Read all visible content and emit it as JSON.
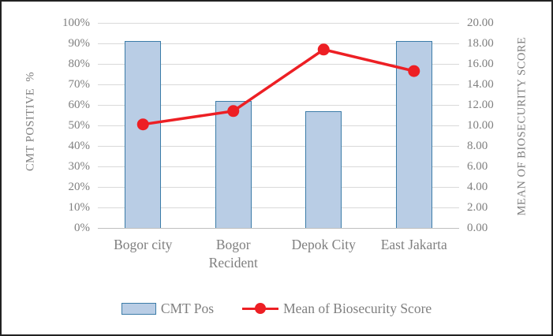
{
  "chart_data": {
    "type": "combo",
    "title": "",
    "categories": [
      "Bogor city",
      "Bogor Recident",
      "Depok City",
      "East Jakarta"
    ],
    "series": [
      {
        "name": "CMT Pos",
        "type": "bar",
        "axis": "left",
        "unit": "%",
        "values": [
          91,
          62,
          57,
          91
        ]
      },
      {
        "name": "Mean of Biosecurity Score",
        "type": "line",
        "axis": "right",
        "values": [
          10.1,
          11.4,
          17.4,
          15.3
        ]
      }
    ],
    "left_axis": {
      "title": "CMT POSITIVE  %",
      "min": 0,
      "max": 100,
      "step": 10,
      "ticks": [
        "100%",
        "90%",
        "80%",
        "70%",
        "60%",
        "50%",
        "40%",
        "30%",
        "20%",
        "10%",
        "0%"
      ]
    },
    "right_axis": {
      "title": "MEAN OF BIOSECURITY SCORE",
      "min": 0,
      "max": 20,
      "step": 2,
      "ticks": [
        "20.00",
        "18.00",
        "16.00",
        "14.00",
        "12.00",
        "10.00",
        "8.00",
        "6.00",
        "4.00",
        "2.00",
        "0.00"
      ]
    },
    "legend": {
      "position": "bottom",
      "items": [
        "CMT Pos",
        "Mean of Biosecurity Score"
      ]
    },
    "grid": "horizontal",
    "colors": {
      "bar_fill": "#b9cde5",
      "bar_border": "#3c7ca8",
      "line": "#ed1f24",
      "gridline": "#d9d9d9",
      "axis_line": "#bfbfbf",
      "text": "#7f7f7f",
      "frame": "#222222"
    }
  }
}
